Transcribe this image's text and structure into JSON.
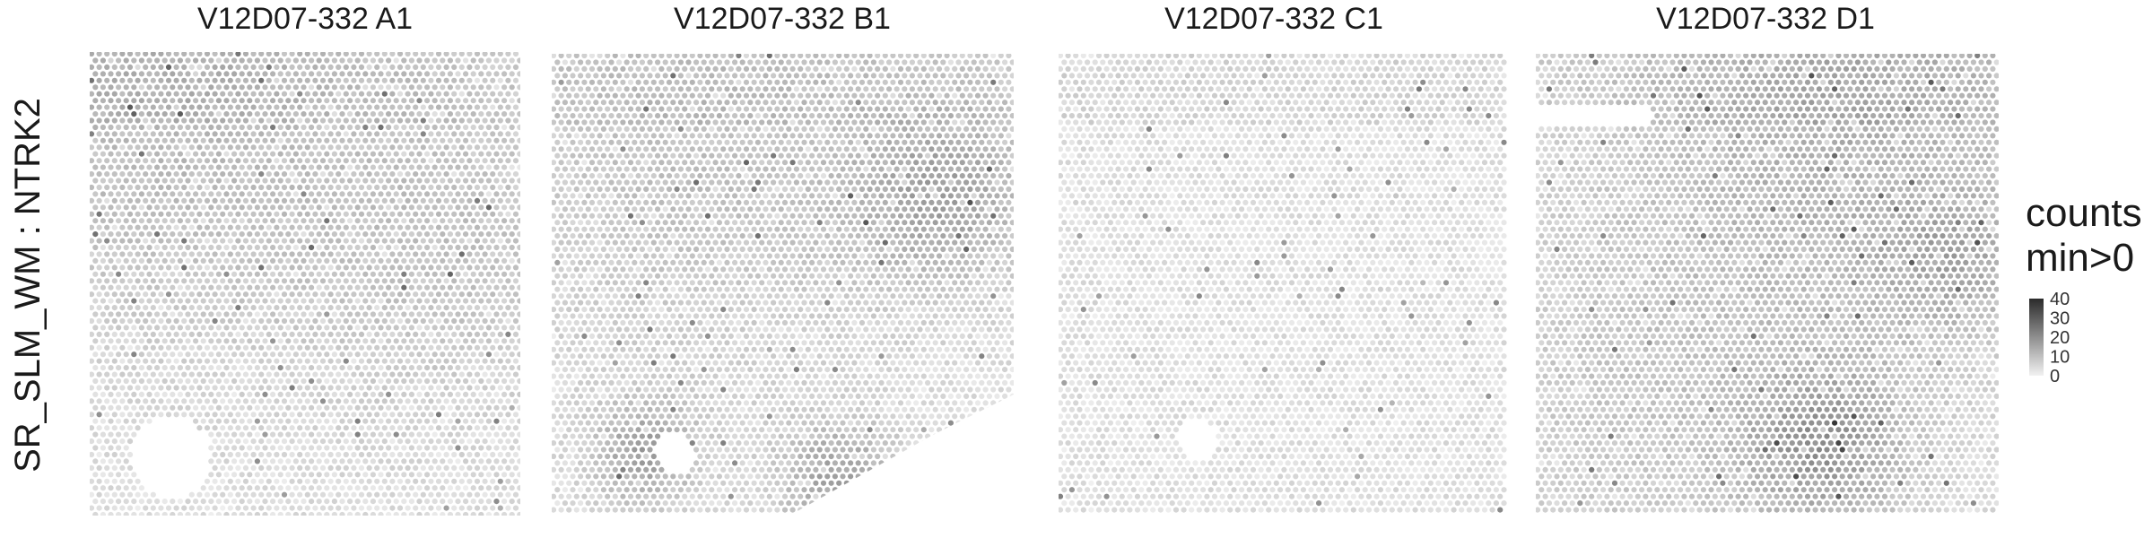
{
  "chart_data": {
    "type": "heatmap",
    "row_label": "SR_SLM_WM : NTRK2",
    "panels": [
      {
        "title": "V12D07-332  A1"
      },
      {
        "title": "V12D07-332  B1"
      },
      {
        "title": "V12D07-332  C1"
      },
      {
        "title": "V12D07-332  D1"
      }
    ],
    "legend": {
      "title_line1": "counts",
      "title_line2": "min>0",
      "ticks": [
        "40",
        "30",
        "20",
        "10",
        "0"
      ],
      "range": [
        0,
        40
      ],
      "low_color": "#f2f2f2",
      "high_color": "#2b2b2b"
    },
    "grid": false
  }
}
